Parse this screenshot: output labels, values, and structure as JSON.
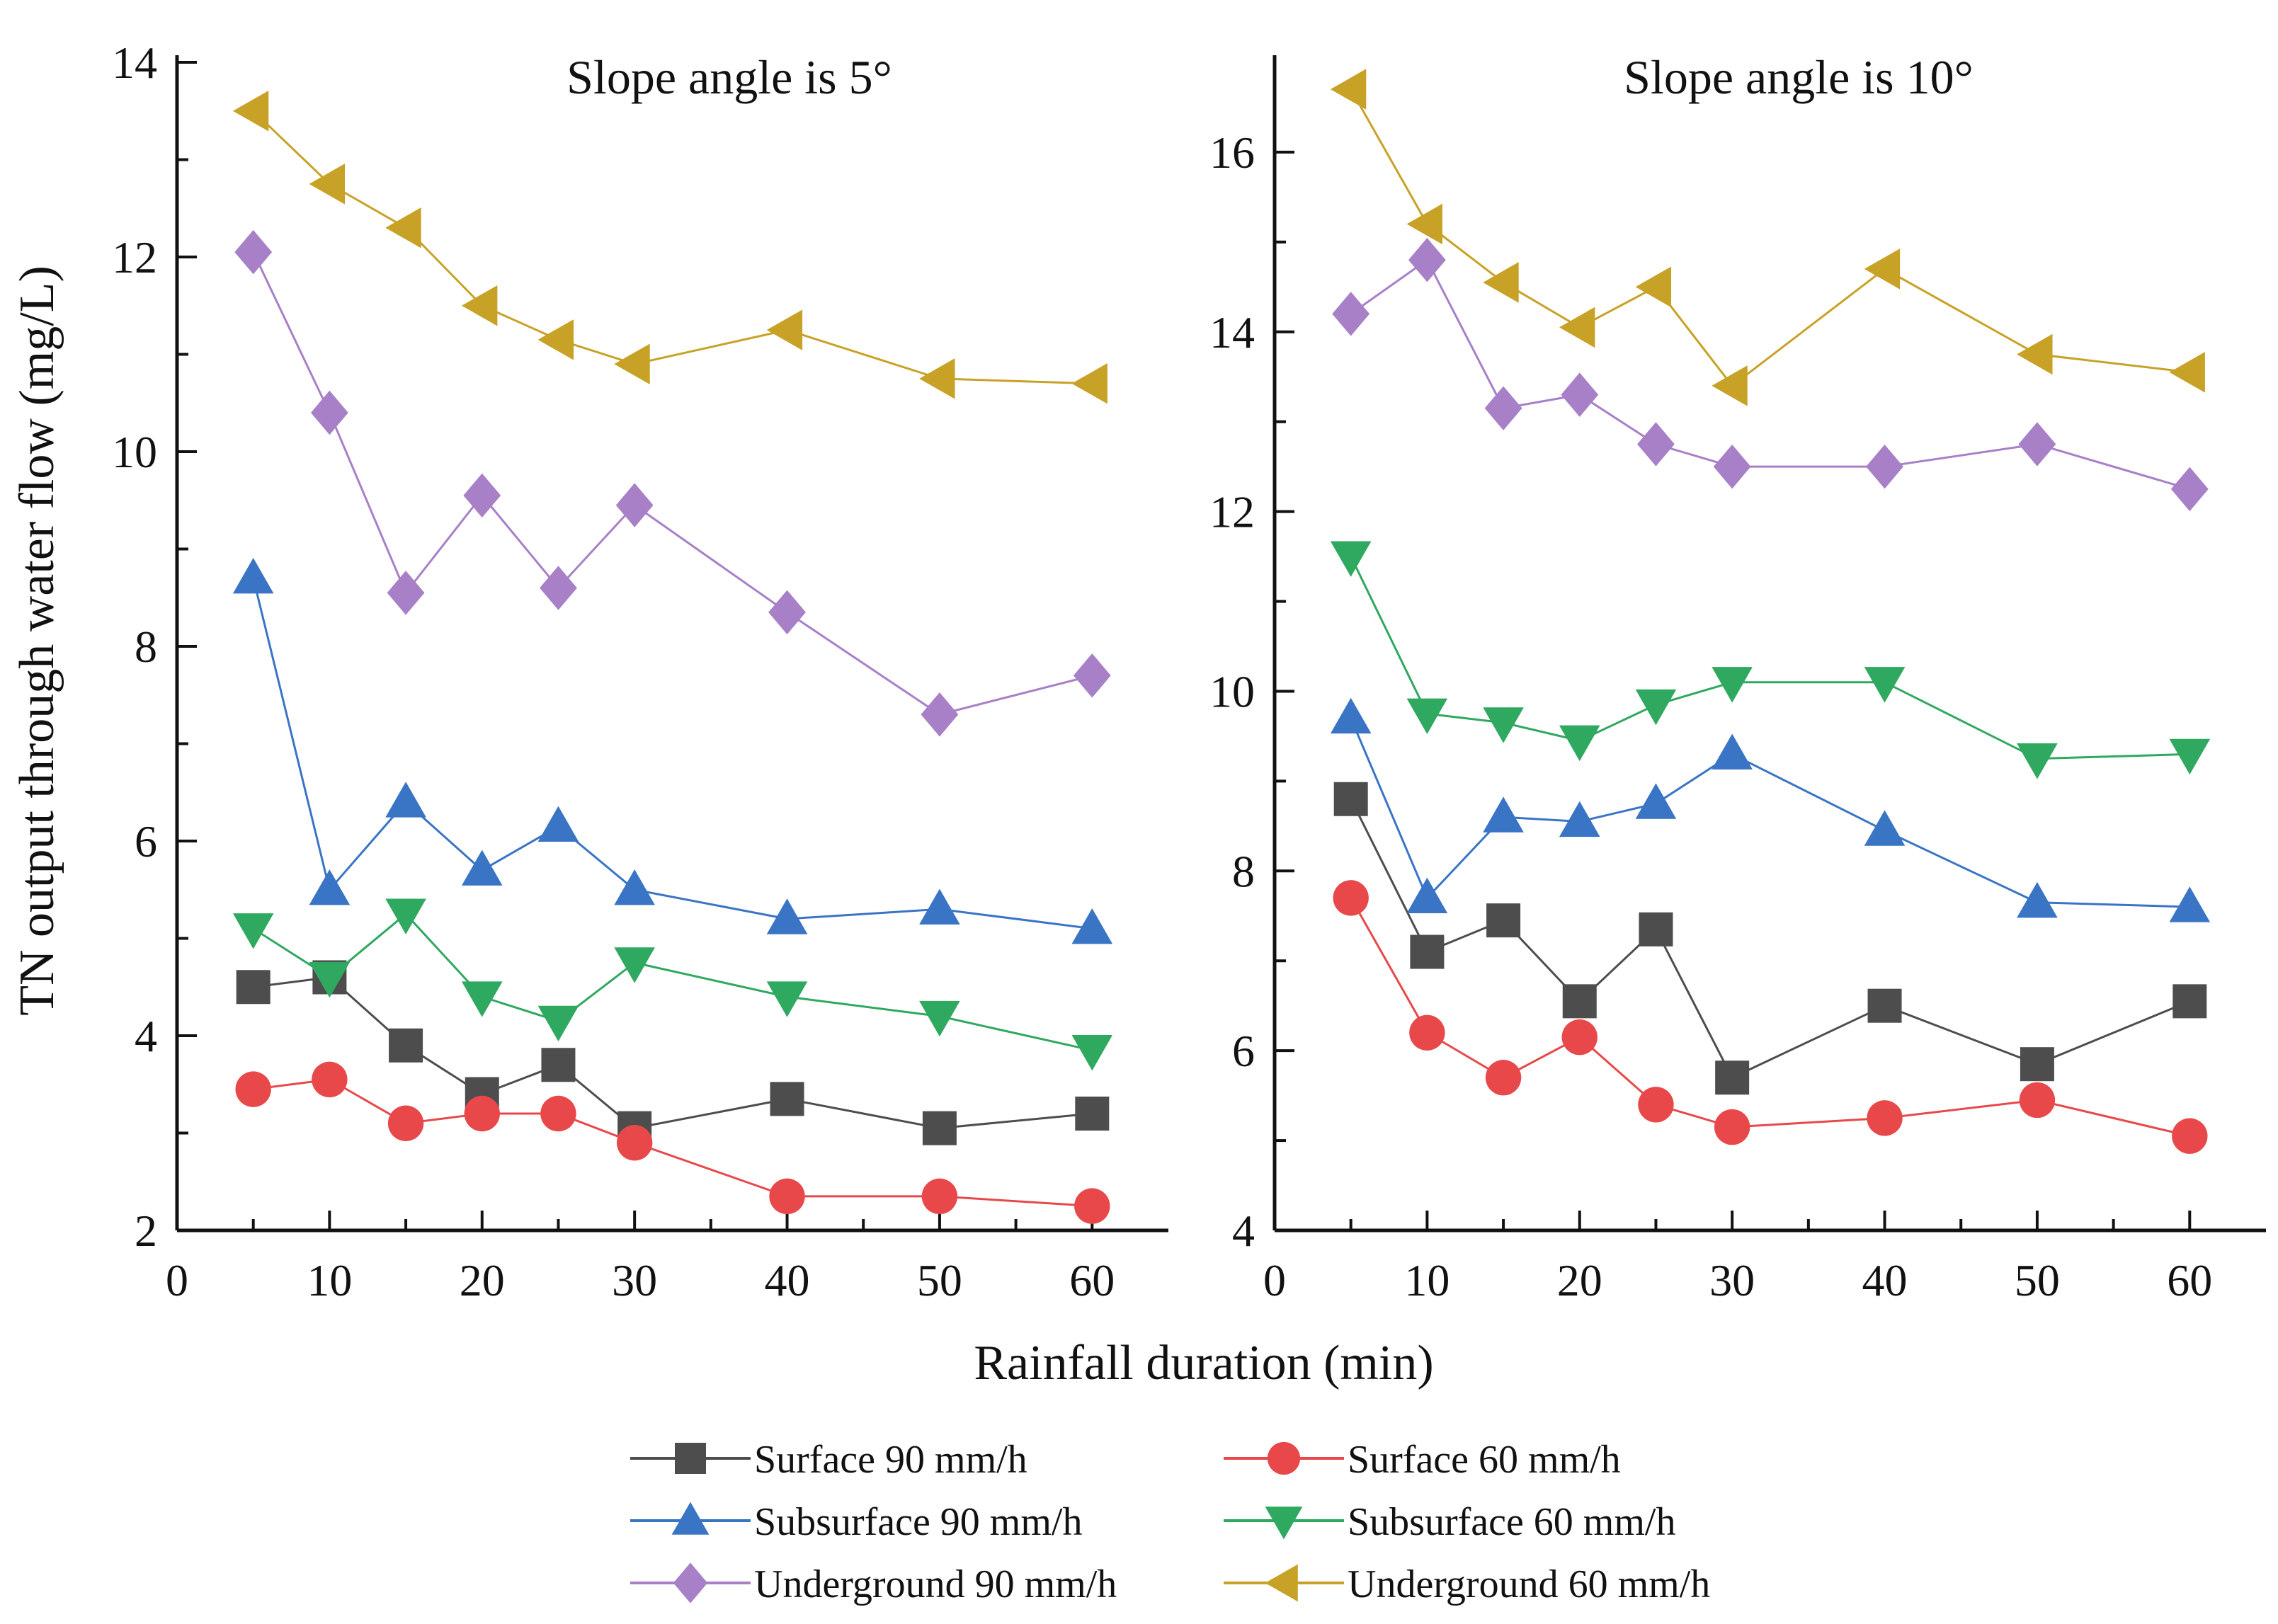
{
  "figure": {
    "ylabel": "TN output through water flow (mg/L)",
    "xlabel": "Rainfall duration (min)"
  },
  "legend": {
    "entries": [
      {
        "key": "surface90",
        "label": "Surface 90 mm/h"
      },
      {
        "key": "surface60",
        "label": "Surface 60 mm/h"
      },
      {
        "key": "subsurface90",
        "label": "Subsurface 90 mm/h"
      },
      {
        "key": "subsurface60",
        "label": "Subsurface 60 mm/h"
      },
      {
        "key": "underground90",
        "label": "Underground 90 mm/h"
      },
      {
        "key": "underground60",
        "label": "Underground 60 mm/h"
      }
    ]
  },
  "styles": {
    "surface90": {
      "color": "#4d4d4d",
      "marker": "square"
    },
    "surface60": {
      "color": "#e8484a",
      "marker": "circle"
    },
    "subsurface90": {
      "color": "#3a74c5",
      "marker": "triangle-up"
    },
    "subsurface60": {
      "color": "#2fa860",
      "marker": "triangle-down"
    },
    "underground90": {
      "color": "#a780c8",
      "marker": "diamond"
    },
    "underground60": {
      "color": "#c8a227",
      "marker": "triangle-left"
    }
  },
  "chart_data": [
    {
      "type": "line",
      "title": "Slope angle is 5°",
      "xlabel": "Rainfall duration (min)",
      "ylabel": "TN output through water flow (mg/L)",
      "xlim": [
        0,
        65
      ],
      "ylim": [
        2,
        14
      ],
      "xticks": [
        0,
        10,
        20,
        30,
        40,
        50,
        60
      ],
      "yticks": [
        2,
        4,
        6,
        8,
        10,
        12,
        14
      ],
      "x": [
        5,
        10,
        15,
        20,
        25,
        30,
        40,
        50,
        60
      ],
      "series": [
        {
          "key": "surface90",
          "name": "Surface 90 mm/h",
          "values": [
            4.5,
            4.6,
            3.9,
            3.4,
            3.7,
            3.05,
            3.35,
            3.05,
            3.2
          ]
        },
        {
          "key": "surface60",
          "name": "Surface 60 mm/h",
          "values": [
            3.45,
            3.55,
            3.1,
            3.2,
            3.2,
            2.9,
            2.35,
            2.35,
            2.25
          ]
        },
        {
          "key": "subsurface90",
          "name": "Subsurface 90 mm/h",
          "values": [
            8.7,
            5.5,
            6.4,
            5.7,
            6.15,
            5.5,
            5.2,
            5.3,
            5.1
          ]
        },
        {
          "key": "subsurface60",
          "name": "Subsurface 60 mm/h",
          "values": [
            5.1,
            4.6,
            5.25,
            4.4,
            4.15,
            4.75,
            4.4,
            4.2,
            3.85
          ]
        },
        {
          "key": "underground90",
          "name": "Underground 90 mm/h",
          "values": [
            12.05,
            10.4,
            8.55,
            9.55,
            8.6,
            9.45,
            8.35,
            7.3,
            7.7
          ]
        },
        {
          "key": "underground60",
          "name": "Underground 60 mm/h",
          "values": [
            13.5,
            12.75,
            12.3,
            11.5,
            11.15,
            10.9,
            11.25,
            10.75,
            10.7
          ]
        }
      ]
    },
    {
      "type": "line",
      "title": "Slope angle is 10°",
      "xlabel": "Rainfall duration (min)",
      "ylabel": "TN output through water flow (mg/L)",
      "xlim": [
        0,
        65
      ],
      "ylim": [
        4,
        17
      ],
      "xticks": [
        0,
        10,
        20,
        30,
        40,
        50,
        60
      ],
      "yticks": [
        4,
        6,
        8,
        10,
        12,
        14,
        16
      ],
      "x": [
        5,
        10,
        15,
        20,
        25,
        30,
        40,
        50,
        60
      ],
      "series": [
        {
          "key": "surface90",
          "name": "Surface 90 mm/h",
          "values": [
            8.8,
            7.1,
            7.45,
            6.55,
            7.35,
            5.7,
            6.5,
            5.85,
            6.55
          ]
        },
        {
          "key": "surface60",
          "name": "Surface 60 mm/h",
          "values": [
            7.7,
            6.2,
            5.7,
            6.15,
            5.4,
            5.15,
            5.25,
            5.45,
            5.05
          ]
        },
        {
          "key": "subsurface90",
          "name": "Subsurface 90 mm/h",
          "values": [
            9.7,
            7.7,
            8.6,
            8.55,
            8.75,
            9.3,
            8.45,
            7.65,
            7.6
          ]
        },
        {
          "key": "subsurface60",
          "name": "Subsurface 60 mm/h",
          "values": [
            11.5,
            9.75,
            9.65,
            9.45,
            9.85,
            10.1,
            10.1,
            9.25,
            9.3
          ]
        },
        {
          "key": "underground90",
          "name": "Underground 90 mm/h",
          "values": [
            14.2,
            14.8,
            13.15,
            13.3,
            12.75,
            12.5,
            12.5,
            12.75,
            12.25
          ]
        },
        {
          "key": "underground60",
          "name": "Underground 60 mm/h",
          "values": [
            16.7,
            15.2,
            14.55,
            14.05,
            14.5,
            13.4,
            14.7,
            13.75,
            13.55
          ]
        }
      ]
    }
  ]
}
